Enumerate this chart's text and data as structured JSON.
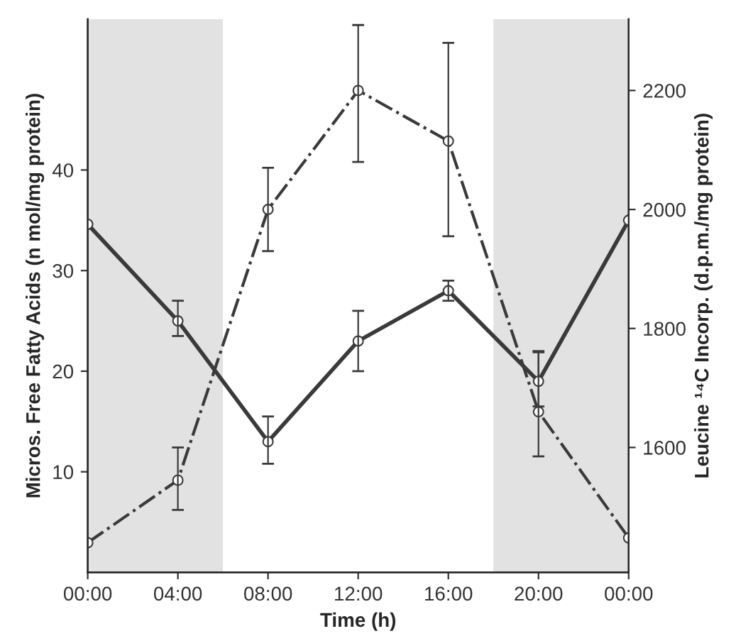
{
  "chart_data": {
    "type": "line",
    "xlabel": "Time (h)",
    "ylabel": "Micros. Free Fatty Acids (n mol/mg protein)",
    "y2label": "Leucine ¹⁴C Incorp. (d.p.m./mg protein)",
    "x": [
      0,
      4,
      8,
      12,
      16,
      20,
      24
    ],
    "series": [
      {
        "color": "#3a3a3a",
        "line_style": "solid",
        "values": [
          34.6,
          25,
          13,
          23,
          28,
          19,
          35
        ],
        "errors": [
          null,
          [
            23.5,
            27
          ],
          [
            10.8,
            15.5
          ],
          [
            20,
            26
          ],
          [
            27,
            29
          ],
          [
            16.5,
            22
          ],
          null
        ]
      },
      {
        "color": "#3a3a3a",
        "line_style": "dashdot",
        "axis": "y2",
        "values": [
          1440,
          1545,
          2000,
          2200,
          2115,
          1660,
          1448
        ],
        "errors": [
          null,
          [
            1495,
            1600
          ],
          [
            1930,
            2070
          ],
          [
            2080,
            2310
          ],
          [
            1955,
            2280
          ],
          [
            1585,
            1760
          ],
          null
        ]
      }
    ],
    "xlim": [
      0,
      24
    ],
    "xticks": [
      {
        "value": 0,
        "label": "00:00"
      },
      {
        "value": 4,
        "label": "04:00"
      },
      {
        "value": 8,
        "label": "08:00"
      },
      {
        "value": 12,
        "label": "12:00"
      },
      {
        "value": 16,
        "label": "16:00"
      },
      {
        "value": 20,
        "label": "20:00"
      },
      {
        "value": 24,
        "label": "00:00"
      }
    ],
    "ylim": [
      0,
      55
    ],
    "yticks": [
      10,
      20,
      30,
      40
    ],
    "y2lim": [
      1390,
      2320
    ],
    "y2ticks": [
      1600,
      1800,
      2000,
      2200
    ],
    "bands": [
      {
        "axis": "x",
        "from": 0,
        "to": 6,
        "color": "#e2e2e2"
      },
      {
        "axis": "x",
        "from": 18,
        "to": 24,
        "color": "#e2e2e2"
      }
    ],
    "marker": "circle",
    "grid": false,
    "legend": false
  }
}
